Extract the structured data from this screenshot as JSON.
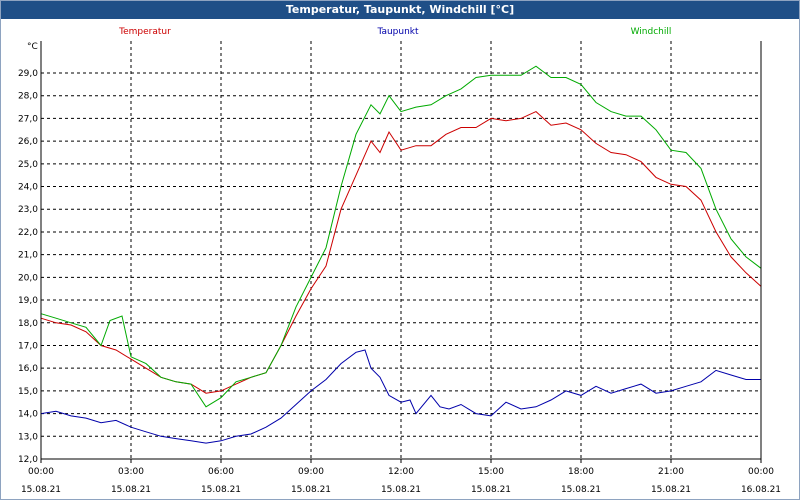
{
  "window": {
    "title": "Temperatur, Taupunkt, Windchill [°C]"
  },
  "colors": {
    "titlebar": "#1f4f87",
    "grid": "#000000"
  },
  "chart_data": {
    "type": "line",
    "title": "Temperatur, Taupunkt, Windchill [°C]",
    "yunit": "°C",
    "ylim": [
      12.0,
      29.0
    ],
    "yticks": [
      "12,0",
      "13,0",
      "14,0",
      "15,0",
      "16,0",
      "17,0",
      "18,0",
      "19,0",
      "20,0",
      "21,0",
      "22,0",
      "23,0",
      "24,0",
      "25,0",
      "26,0",
      "27,0",
      "28,0",
      "29,0"
    ],
    "xlim": [
      0,
      24
    ],
    "xticks": [
      {
        "time": "00:00",
        "date": "15.08.21"
      },
      {
        "time": "03:00",
        "date": "15.08.21"
      },
      {
        "time": "06:00",
        "date": "15.08.21"
      },
      {
        "time": "09:00",
        "date": "15.08.21"
      },
      {
        "time": "12:00",
        "date": "15.08.21"
      },
      {
        "time": "15:00",
        "date": "15.08.21"
      },
      {
        "time": "18:00",
        "date": "15.08.21"
      },
      {
        "time": "21:00",
        "date": "15.08.21"
      },
      {
        "time": "00:00",
        "date": "16.08.21"
      }
    ],
    "grid": true,
    "legend_position": "top",
    "series": [
      {
        "name": "Temperatur",
        "color": "#cc0000",
        "points": [
          [
            0,
            18.2
          ],
          [
            0.5,
            18.0
          ],
          [
            1.0,
            17.9
          ],
          [
            1.5,
            17.6
          ],
          [
            2.0,
            17.0
          ],
          [
            2.5,
            16.8
          ],
          [
            3.0,
            16.4
          ],
          [
            3.5,
            16.0
          ],
          [
            4.0,
            15.6
          ],
          [
            4.5,
            15.4
          ],
          [
            5.0,
            15.3
          ],
          [
            5.5,
            14.9
          ],
          [
            6.0,
            15.0
          ],
          [
            6.5,
            15.3
          ],
          [
            7.0,
            15.6
          ],
          [
            7.5,
            15.8
          ],
          [
            8.0,
            17.0
          ],
          [
            8.5,
            18.3
          ],
          [
            9.0,
            19.5
          ],
          [
            9.5,
            20.5
          ],
          [
            10.0,
            23.0
          ],
          [
            10.5,
            24.5
          ],
          [
            11.0,
            26.0
          ],
          [
            11.3,
            25.5
          ],
          [
            11.6,
            26.4
          ],
          [
            12.0,
            25.6
          ],
          [
            12.5,
            25.8
          ],
          [
            13.0,
            25.8
          ],
          [
            13.5,
            26.3
          ],
          [
            14.0,
            26.6
          ],
          [
            14.5,
            26.6
          ],
          [
            15.0,
            27.0
          ],
          [
            15.5,
            26.9
          ],
          [
            16.0,
            27.0
          ],
          [
            16.5,
            27.3
          ],
          [
            17.0,
            26.7
          ],
          [
            17.5,
            26.8
          ],
          [
            18.0,
            26.5
          ],
          [
            18.5,
            25.9
          ],
          [
            19.0,
            25.5
          ],
          [
            19.5,
            25.4
          ],
          [
            20.0,
            25.1
          ],
          [
            20.5,
            24.4
          ],
          [
            21.0,
            24.1
          ],
          [
            21.5,
            24.0
          ],
          [
            22.0,
            23.4
          ],
          [
            22.5,
            22.0
          ],
          [
            23.0,
            20.9
          ],
          [
            23.5,
            20.2
          ],
          [
            24.0,
            19.6
          ]
        ]
      },
      {
        "name": "Taupunkt",
        "color": "#0000aa",
        "points": [
          [
            0,
            14.0
          ],
          [
            0.5,
            14.1
          ],
          [
            1.0,
            13.9
          ],
          [
            1.5,
            13.8
          ],
          [
            2.0,
            13.6
          ],
          [
            2.5,
            13.7
          ],
          [
            3.0,
            13.4
          ],
          [
            3.5,
            13.2
          ],
          [
            4.0,
            13.0
          ],
          [
            4.5,
            12.9
          ],
          [
            5.0,
            12.8
          ],
          [
            5.5,
            12.7
          ],
          [
            6.0,
            12.8
          ],
          [
            6.5,
            13.0
          ],
          [
            7.0,
            13.1
          ],
          [
            7.5,
            13.4
          ],
          [
            8.0,
            13.8
          ],
          [
            8.5,
            14.4
          ],
          [
            9.0,
            15.0
          ],
          [
            9.5,
            15.5
          ],
          [
            10.0,
            16.2
          ],
          [
            10.5,
            16.7
          ],
          [
            10.8,
            16.8
          ],
          [
            11.0,
            16.0
          ],
          [
            11.3,
            15.6
          ],
          [
            11.6,
            14.8
          ],
          [
            12.0,
            14.5
          ],
          [
            12.3,
            14.6
          ],
          [
            12.5,
            14.0
          ],
          [
            13.0,
            14.8
          ],
          [
            13.3,
            14.3
          ],
          [
            13.6,
            14.2
          ],
          [
            14.0,
            14.4
          ],
          [
            14.5,
            14.0
          ],
          [
            15.0,
            13.9
          ],
          [
            15.5,
            14.5
          ],
          [
            16.0,
            14.2
          ],
          [
            16.5,
            14.3
          ],
          [
            17.0,
            14.6
          ],
          [
            17.5,
            15.0
          ],
          [
            18.0,
            14.8
          ],
          [
            18.5,
            15.2
          ],
          [
            19.0,
            14.9
          ],
          [
            19.5,
            15.1
          ],
          [
            20.0,
            15.3
          ],
          [
            20.5,
            14.9
          ],
          [
            21.0,
            15.0
          ],
          [
            21.5,
            15.2
          ],
          [
            22.0,
            15.4
          ],
          [
            22.5,
            15.9
          ],
          [
            23.0,
            15.7
          ],
          [
            23.5,
            15.5
          ],
          [
            24.0,
            15.5
          ]
        ]
      },
      {
        "name": "Windchill",
        "color": "#00aa00",
        "points": [
          [
            0,
            18.4
          ],
          [
            0.5,
            18.2
          ],
          [
            1.0,
            18.0
          ],
          [
            1.5,
            17.8
          ],
          [
            2.0,
            17.0
          ],
          [
            2.3,
            18.1
          ],
          [
            2.7,
            18.3
          ],
          [
            3.0,
            16.5
          ],
          [
            3.5,
            16.2
          ],
          [
            4.0,
            15.6
          ],
          [
            4.5,
            15.4
          ],
          [
            5.0,
            15.3
          ],
          [
            5.5,
            14.3
          ],
          [
            6.0,
            14.7
          ],
          [
            6.5,
            15.4
          ],
          [
            7.0,
            15.6
          ],
          [
            7.5,
            15.8
          ],
          [
            8.0,
            17.0
          ],
          [
            8.5,
            18.7
          ],
          [
            9.0,
            20.0
          ],
          [
            9.5,
            21.3
          ],
          [
            10.0,
            24.0
          ],
          [
            10.5,
            26.3
          ],
          [
            11.0,
            27.6
          ],
          [
            11.3,
            27.2
          ],
          [
            11.6,
            28.0
          ],
          [
            12.0,
            27.3
          ],
          [
            12.5,
            27.5
          ],
          [
            13.0,
            27.6
          ],
          [
            13.5,
            28.0
          ],
          [
            14.0,
            28.3
          ],
          [
            14.5,
            28.8
          ],
          [
            15.0,
            28.9
          ],
          [
            15.5,
            28.9
          ],
          [
            16.0,
            28.9
          ],
          [
            16.5,
            29.3
          ],
          [
            17.0,
            28.8
          ],
          [
            17.5,
            28.8
          ],
          [
            18.0,
            28.5
          ],
          [
            18.5,
            27.7
          ],
          [
            19.0,
            27.3
          ],
          [
            19.5,
            27.1
          ],
          [
            20.0,
            27.1
          ],
          [
            20.5,
            26.5
          ],
          [
            21.0,
            25.6
          ],
          [
            21.5,
            25.5
          ],
          [
            22.0,
            24.8
          ],
          [
            22.5,
            23.0
          ],
          [
            23.0,
            21.7
          ],
          [
            23.5,
            20.9
          ],
          [
            24.0,
            20.4
          ]
        ]
      }
    ]
  }
}
